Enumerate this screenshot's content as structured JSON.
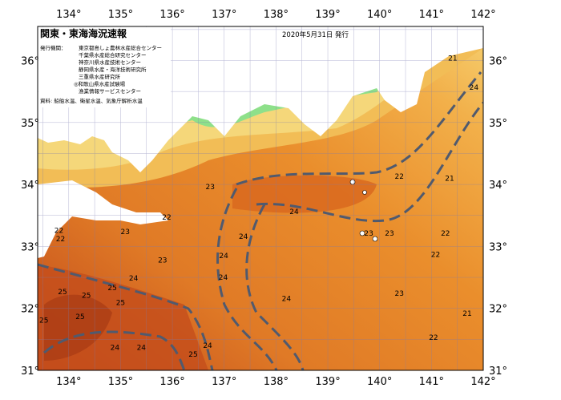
{
  "title": "関東・東海海況速報",
  "issue_date": "2020年5月31日 発行",
  "publishers_label": "発行機関：",
  "publishers": [
    "東京都島しょ農林水産総合センター",
    "千葉県水産総合研究センター",
    "神奈川県水産技術センター",
    "静岡県水産・海洋技術研究所",
    "三重県水産研究所",
    "◎和歌山県水産試験場",
    "漁業情報サービスセンター"
  ],
  "source": "資料: 船舶水温、衛星水温、気象庁解析水温",
  "map": {
    "lon_range": [
      133.4,
      142.0
    ],
    "lat_range": [
      31.0,
      36.55
    ],
    "lon_ticks": [
      "134°",
      "135°",
      "136°",
      "137°",
      "138°",
      "139°",
      "140°",
      "141°",
      "142°"
    ],
    "lat_ticks": [
      "31°",
      "32°",
      "33°",
      "34°",
      "35°",
      "36°"
    ],
    "colors": {
      "warm": "#c8501c",
      "mid": "#e8852a",
      "cool": "#f5c060",
      "shelf": "#8ee08a",
      "land": "#ffffff",
      "current": "#505a6e"
    },
    "contour_labels": [
      {
        "t": "21",
        "lon": 141.41,
        "lat": 36.04
      },
      {
        "t": "24",
        "lon": 141.82,
        "lat": 35.57
      },
      {
        "t": "22",
        "lon": 140.38,
        "lat": 34.13
      },
      {
        "t": "21",
        "lon": 141.35,
        "lat": 34.1
      },
      {
        "t": "23",
        "lon": 136.73,
        "lat": 33.96
      },
      {
        "t": "24",
        "lon": 138.35,
        "lat": 33.56
      },
      {
        "t": "22",
        "lon": 135.89,
        "lat": 33.47
      },
      {
        "t": "22",
        "lon": 133.81,
        "lat": 33.26
      },
      {
        "t": "22",
        "lon": 133.84,
        "lat": 33.12
      },
      {
        "t": "23",
        "lon": 135.09,
        "lat": 33.24
      },
      {
        "t": "24",
        "lon": 137.37,
        "lat": 33.16
      },
      {
        "t": "23",
        "lon": 139.79,
        "lat": 33.21
      },
      {
        "t": "23",
        "lon": 140.19,
        "lat": 33.21
      },
      {
        "t": "22",
        "lon": 141.27,
        "lat": 33.21
      },
      {
        "t": "22",
        "lon": 141.08,
        "lat": 32.87
      },
      {
        "t": "23",
        "lon": 135.81,
        "lat": 32.78
      },
      {
        "t": "24",
        "lon": 136.99,
        "lat": 32.85
      },
      {
        "t": "24",
        "lon": 135.25,
        "lat": 32.49
      },
      {
        "t": "24",
        "lon": 136.98,
        "lat": 32.5
      },
      {
        "t": "25",
        "lon": 134.84,
        "lat": 32.33
      },
      {
        "t": "25",
        "lon": 133.88,
        "lat": 32.27
      },
      {
        "t": "25",
        "lon": 134.34,
        "lat": 32.21
      },
      {
        "t": "25",
        "lon": 135.0,
        "lat": 32.09
      },
      {
        "t": "24",
        "lon": 138.2,
        "lat": 32.16
      },
      {
        "t": "23",
        "lon": 140.38,
        "lat": 32.24
      },
      {
        "t": "25",
        "lon": 134.22,
        "lat": 31.87
      },
      {
        "t": "21",
        "lon": 141.69,
        "lat": 31.92
      },
      {
        "t": "25",
        "lon": 133.52,
        "lat": 31.81
      },
      {
        "t": "22",
        "lon": 141.04,
        "lat": 31.53
      },
      {
        "t": "24",
        "lon": 134.89,
        "lat": 31.37
      },
      {
        "t": "24",
        "lon": 135.4,
        "lat": 31.37
      },
      {
        "t": "24",
        "lon": 136.68,
        "lat": 31.4
      },
      {
        "t": "25",
        "lon": 136.4,
        "lat": 31.26
      }
    ]
  }
}
